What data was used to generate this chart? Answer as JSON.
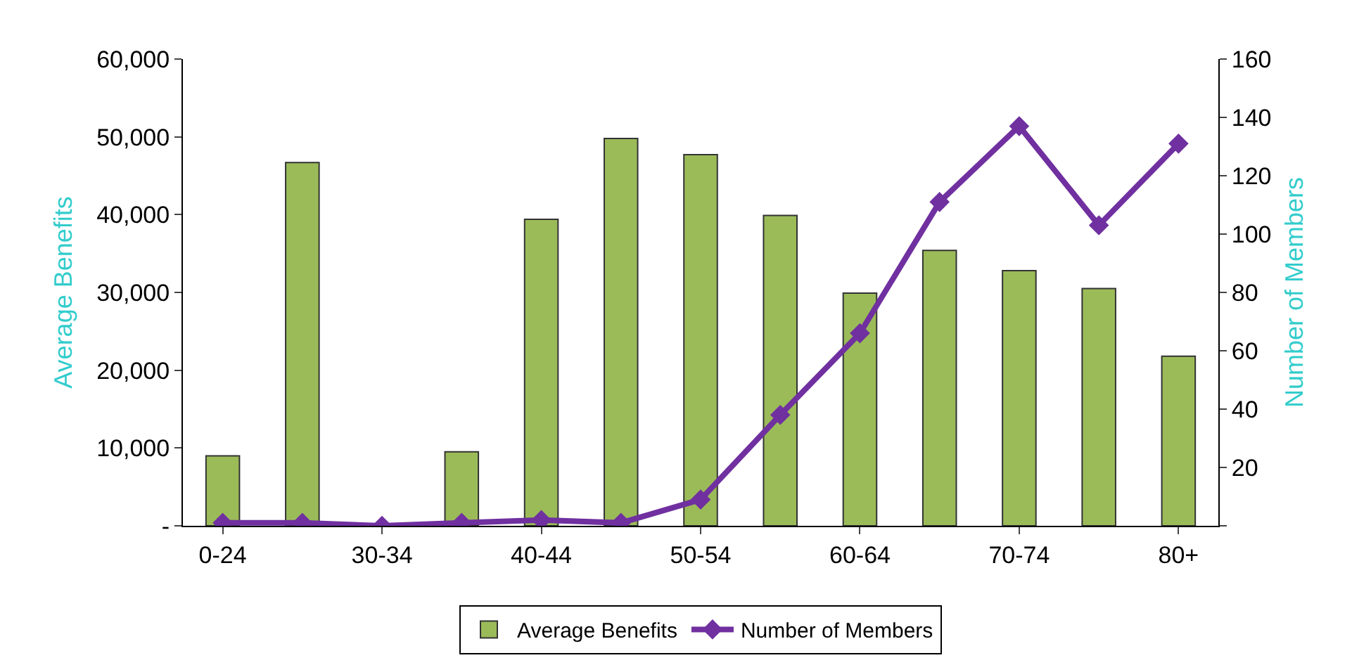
{
  "chart_data": {
    "type": "bar",
    "ylabel": "Average Benefits",
    "y2label": "Number of Members",
    "categories": [
      "0-24",
      null,
      "30-34",
      null,
      "40-44",
      null,
      "50-54",
      null,
      "60-64",
      null,
      "70-74",
      null,
      "80+"
    ],
    "series": [
      {
        "name": "Average Benefits",
        "color": "#9bbb59",
        "values": [
          9000,
          46700,
          null,
          9500,
          39400,
          49800,
          47700,
          39900,
          29900,
          35400,
          32800,
          30500,
          21800
        ]
      },
      {
        "name": "Number of Members",
        "type": "line",
        "axis": "y2",
        "color": "#7030a0",
        "marker": "diamond",
        "values": [
          1,
          1,
          0,
          1,
          2,
          1,
          9,
          38,
          66,
          111,
          137,
          103,
          131
        ]
      }
    ],
    "ylim": [
      0,
      60000
    ],
    "yticks": [
      {
        "value": 0,
        "label": "-"
      },
      {
        "value": 10000,
        "label": "10,000"
      },
      {
        "value": 20000,
        "label": "20,000"
      },
      {
        "value": 30000,
        "label": "30,000"
      },
      {
        "value": 40000,
        "label": "40,000"
      },
      {
        "value": 50000,
        "label": "50,000"
      },
      {
        "value": 60000,
        "label": "60,000"
      }
    ],
    "y2lim": [
      0,
      160
    ],
    "y2ticks": [
      {
        "value": 0,
        "label": null
      },
      20,
      40,
      60,
      80,
      100,
      120,
      140,
      160
    ],
    "legend": "bottom"
  }
}
